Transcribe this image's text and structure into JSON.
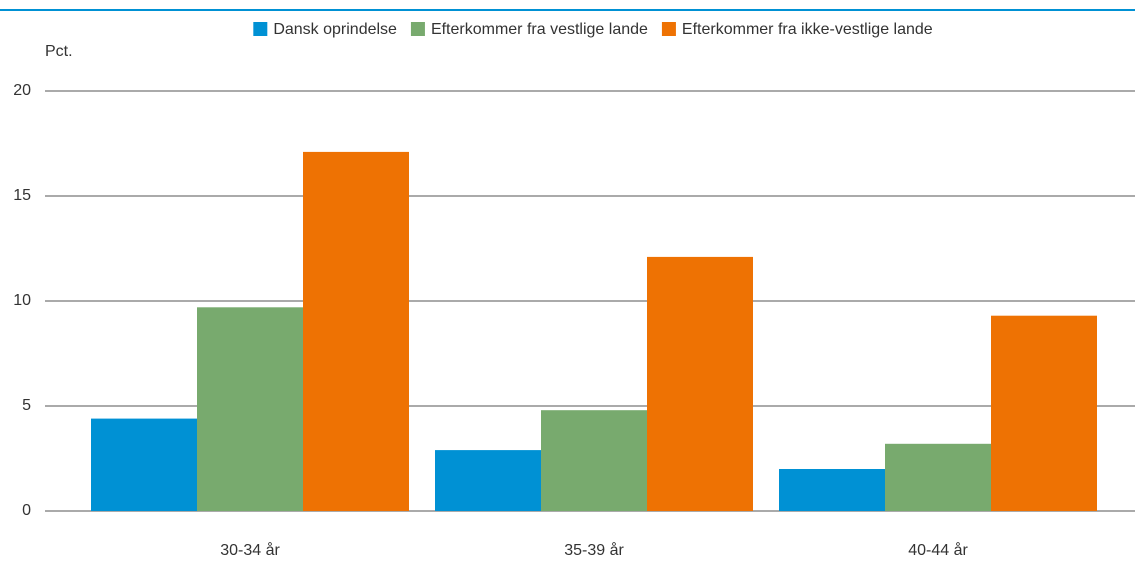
{
  "chart_data": {
    "type": "bar",
    "y_label": "Pct.",
    "categories": [
      "30-34 år",
      "35-39 år",
      "40-44 år"
    ],
    "series": [
      {
        "name": "Dansk oprindelse",
        "color": "#0091d4",
        "values": [
          4.4,
          2.9,
          2.0
        ]
      },
      {
        "name": "Efterkommer fra vestlige lande",
        "color": "#78aa6e",
        "values": [
          9.7,
          4.8,
          3.2
        ]
      },
      {
        "name": "Efterkommer fra ikke-vestlige lande",
        "color": "#ee7203",
        "values": [
          17.1,
          12.1,
          9.3
        ]
      }
    ],
    "ylim": [
      0,
      20
    ],
    "yticks": [
      0,
      5,
      10,
      15,
      20
    ],
    "grid": true,
    "legend": "top"
  }
}
